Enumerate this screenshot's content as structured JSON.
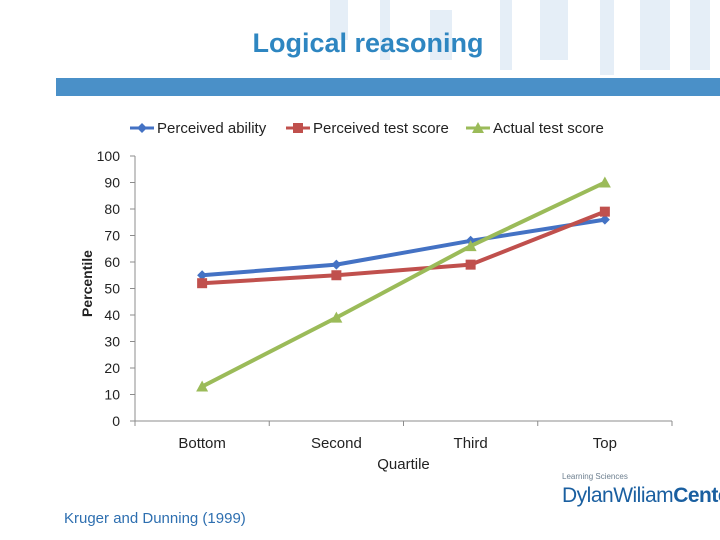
{
  "slide": {
    "title": "Logical reasoning",
    "source": "Kruger and Dunning (1999)",
    "logo_small": "Learning Sciences",
    "logo_light": "DylanWiliam",
    "logo_bold": "Center"
  },
  "colors": {
    "title": "#2e86c1",
    "rule": "#4a90c8",
    "perceived_ability": "#4472c4",
    "perceived_test_score": "#c0504d",
    "actual_test_score": "#9bbb59"
  },
  "chart_data": {
    "type": "line",
    "title": "",
    "xlabel": "Quartile",
    "ylabel": "Percentile",
    "categories": [
      "Bottom",
      "Second",
      "Third",
      "Top"
    ],
    "ylim": [
      0,
      100
    ],
    "yticks": [
      0,
      10,
      20,
      30,
      40,
      50,
      60,
      70,
      80,
      90,
      100
    ],
    "grid": false,
    "legend": "top",
    "series": [
      {
        "name": "Perceived ability",
        "marker": "diamond",
        "color": "#4472c4",
        "values": [
          55,
          59,
          68,
          76
        ]
      },
      {
        "name": "Perceived test score",
        "marker": "square",
        "color": "#c0504d",
        "values": [
          52,
          55,
          59,
          79
        ]
      },
      {
        "name": "Actual test score",
        "marker": "triangle",
        "color": "#9bbb59",
        "values": [
          13,
          39,
          66,
          90
        ]
      }
    ]
  }
}
